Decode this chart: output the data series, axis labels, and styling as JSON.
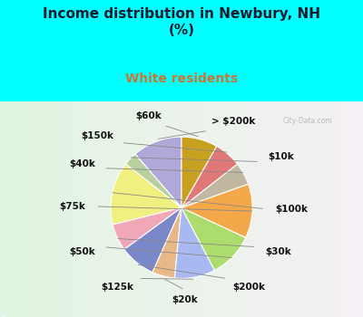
{
  "title": "Income distribution in Newbury, NH\n(%)",
  "subtitle": "White residents",
  "title_color": "#1a1a2e",
  "subtitle_color": "#c87832",
  "bg_color": "#00ffff",
  "labels": [
    "> $200k",
    "$10k",
    "$100k",
    "$30k",
    "$200k",
    "$20k",
    "$125k",
    "$50k",
    "$75k",
    "$40k",
    "$150k",
    "$60k"
  ],
  "values": [
    11,
    3,
    14,
    6,
    8,
    5,
    9,
    10,
    12,
    5,
    6,
    8
  ],
  "colors": [
    "#b0a8d8",
    "#b8d0a0",
    "#f0f080",
    "#f0a8b8",
    "#7888c8",
    "#e8b888",
    "#a8b8f0",
    "#addc6e",
    "#f5a84a",
    "#c0b8a0",
    "#e07878",
    "#c8a020"
  ],
  "title_fontsize": 11,
  "subtitle_fontsize": 10,
  "label_fontsize": 7.5
}
